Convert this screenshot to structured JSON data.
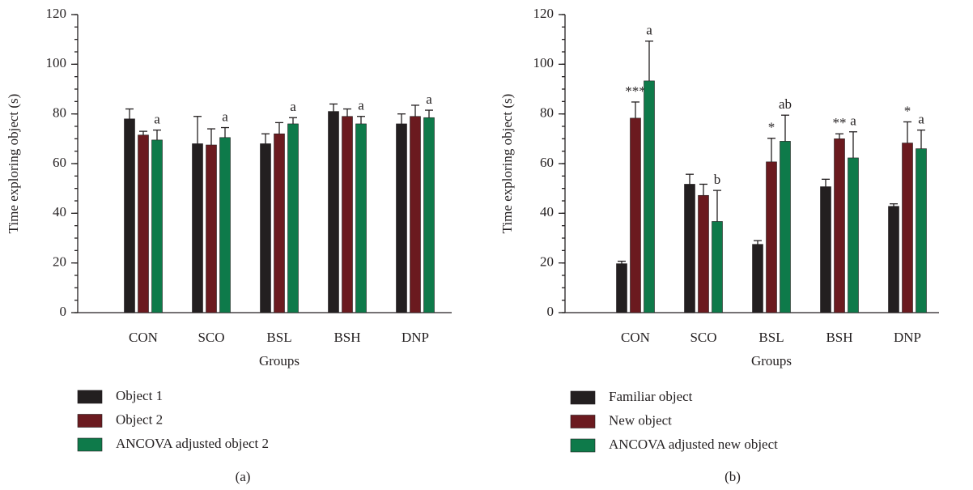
{
  "chart_data": [
    {
      "type": "bar",
      "label": "(a)",
      "y_label": "Time exploring object (s)",
      "x_label": "Groups",
      "categories": [
        "CON",
        "SCO",
        "BSL",
        "BSH",
        "DNP"
      ],
      "ylim": [
        0,
        120
      ],
      "yticks": [
        0,
        20,
        40,
        60,
        80,
        100,
        120
      ],
      "series": [
        {
          "name": "Object 1",
          "color": "#231f20",
          "values": [
            78,
            68,
            68,
            81,
            76
          ],
          "errors": [
            4,
            11,
            4,
            3,
            4
          ],
          "annotations": [
            null,
            null,
            null,
            null,
            null
          ]
        },
        {
          "name": "Object 2",
          "color": "#6b1a1f",
          "values": [
            71.5,
            67.5,
            72,
            79,
            79
          ],
          "errors": [
            1.5,
            6.5,
            4.5,
            3,
            4.5
          ],
          "annotations": [
            null,
            null,
            null,
            null,
            null
          ]
        },
        {
          "name": "ANCOVA adjusted object 2",
          "color": "#0e7a4a",
          "values": [
            69.5,
            70.5,
            76,
            76,
            78.5
          ],
          "errors": [
            4,
            4,
            2.5,
            3,
            3
          ],
          "annotations": [
            "a",
            "a",
            "a",
            "a",
            "a"
          ]
        }
      ]
    },
    {
      "type": "bar",
      "label": "(b)",
      "y_label": "Time exploring object (s)",
      "x_label": "Groups",
      "categories": [
        "CON",
        "SCO",
        "BSL",
        "BSH",
        "DNP"
      ],
      "ylim": [
        0,
        120
      ],
      "yticks": [
        0,
        20,
        40,
        60,
        80,
        100,
        120
      ],
      "series": [
        {
          "name": "Familiar object",
          "color": "#231f20",
          "values": [
            19.7,
            51.7,
            27.5,
            50.7,
            42.8
          ],
          "errors": [
            1,
            4,
            1.5,
            3,
            1
          ],
          "annotations": [
            null,
            null,
            null,
            null,
            null
          ]
        },
        {
          "name": "New object",
          "color": "#6b1a1f",
          "values": [
            78.3,
            47.2,
            60.7,
            70,
            68.3
          ],
          "errors": [
            6.5,
            4.5,
            9.5,
            2,
            8.5
          ],
          "annotations": [
            "***",
            null,
            "*",
            "**",
            "*"
          ]
        },
        {
          "name": "ANCOVA adjusted new object",
          "color": "#0e7a4a",
          "values": [
            93.3,
            36.7,
            69,
            62.3,
            66
          ],
          "errors": [
            16,
            12.5,
            10.5,
            10.5,
            7.5
          ],
          "annotations": [
            "a",
            "b",
            "ab",
            "a",
            "a"
          ]
        }
      ]
    }
  ]
}
